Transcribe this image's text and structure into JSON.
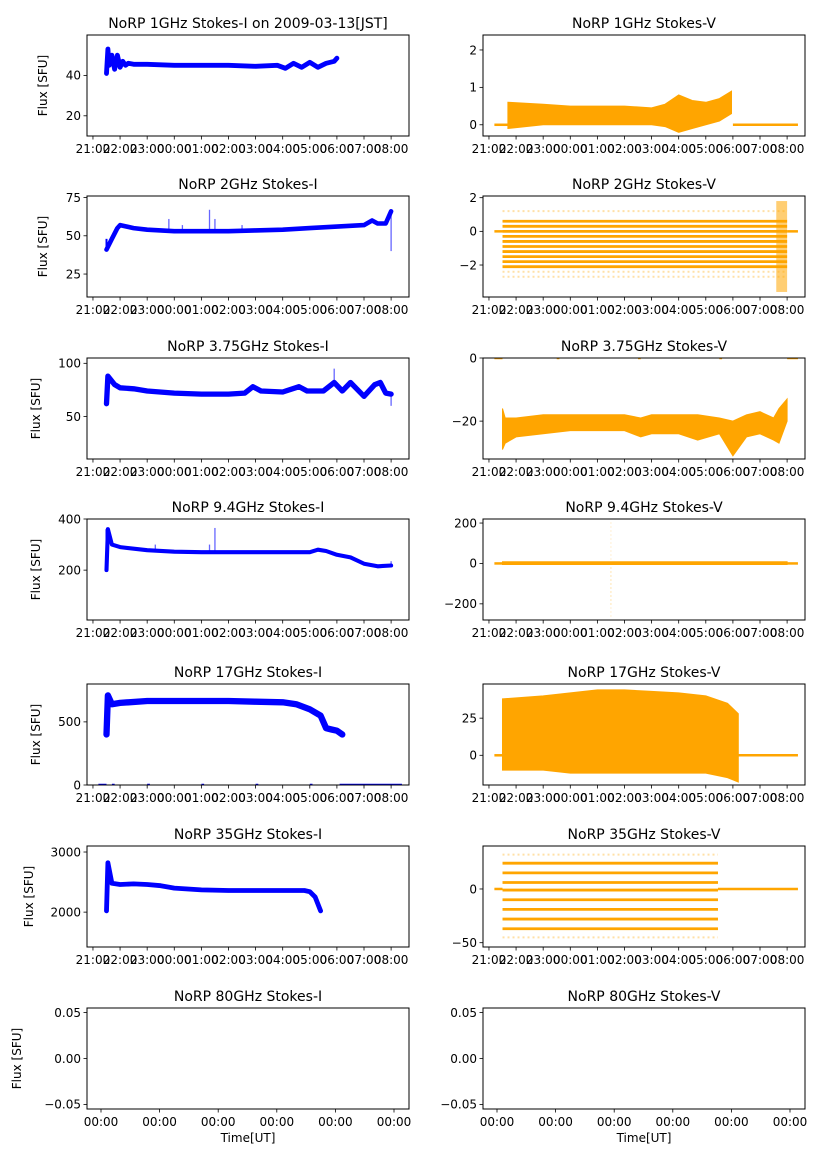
{
  "figure": {
    "xlabel": "Time[UT]",
    "ylabel": "Flux [SFU]",
    "time_ticks": [
      "21:00",
      "22:00",
      "23:00",
      "00:00",
      "01:00",
      "02:00",
      "03:00",
      "04:00",
      "05:00",
      "06:00",
      "07:00",
      "08:00"
    ],
    "empty_time_ticks": [
      "00:00",
      "00:00",
      "00:00",
      "00:00",
      "00:00",
      "00:00"
    ],
    "colors": {
      "stokes_i": "#0000ff",
      "stokes_v": "#ffa500"
    }
  },
  "chart_data": [
    {
      "type": "scatter",
      "title": "NoRP 1GHz Stokes-I on 2009-03-13[JST]",
      "ylabel": "Flux [SFU]",
      "xlabel": "",
      "series": [
        {
          "name": "Stokes-I",
          "color": "#0000ff",
          "kind": "line",
          "x": [
            -2.5,
            -2.45,
            -2.4,
            -2.3,
            -2.2,
            -2.1,
            -2.0,
            -1.9,
            -1.8,
            -1.7,
            -1.5,
            -1.0,
            0,
            1,
            2,
            3,
            3.8,
            4.1,
            4.4,
            4.7,
            5.0,
            5.3,
            5.6,
            5.9,
            6.0
          ],
          "y": [
            41,
            53,
            45,
            50,
            43,
            50,
            44,
            47,
            45,
            46,
            45.5,
            45.5,
            45,
            45,
            45,
            44.5,
            45,
            43.5,
            46,
            44,
            46.5,
            44,
            46,
            47,
            48.5
          ],
          "spread": 1.2
        }
      ],
      "yticks": [
        20,
        40
      ],
      "ylim": [
        10,
        60
      ]
    },
    {
      "type": "scatter",
      "title": "NoRP 1GHz Stokes-V",
      "ylabel": "",
      "xlabel": "",
      "series": [
        {
          "name": "Stokes-V",
          "color": "#ffa500",
          "kind": "band",
          "x": [
            -2.3,
            -1.0,
            0,
            1,
            2,
            3,
            3.5,
            4.0,
            4.5,
            5.0,
            5.5,
            5.95
          ],
          "low": [
            -0.1,
            0.0,
            0.0,
            0.0,
            0.0,
            0.0,
            -0.05,
            -0.2,
            -0.1,
            0.0,
            0.1,
            0.3
          ],
          "high": [
            0.6,
            0.55,
            0.5,
            0.5,
            0.5,
            0.45,
            0.55,
            0.8,
            0.65,
            0.6,
            0.7,
            0.9
          ],
          "flat": [
            [
              -2.8,
              -2.3,
              0
            ],
            [
              6.0,
              8.4,
              0
            ]
          ]
        }
      ],
      "yticks": [
        0,
        1,
        2
      ],
      "ylim": [
        -0.3,
        2.4
      ]
    },
    {
      "type": "scatter",
      "title": "NoRP 2GHz Stokes-I",
      "ylabel": "Flux [SFU]",
      "xlabel": "",
      "series": [
        {
          "name": "Stokes-I",
          "color": "#0000ff",
          "kind": "line",
          "x": [
            -2.5,
            -2.3,
            -2.1,
            -2.0,
            -1.5,
            -1.0,
            0,
            1,
            2,
            3,
            4,
            5,
            6,
            7,
            7.3,
            7.5,
            7.8,
            8.0
          ],
          "y": [
            41,
            48,
            55,
            57,
            55,
            54,
            53,
            53,
            53,
            53.5,
            54,
            55,
            56,
            57,
            60,
            58,
            58,
            66
          ],
          "spread": 1.5,
          "spikes": [
            [
              -0.2,
              61
            ],
            [
              0.3,
              57
            ],
            [
              1.3,
              67
            ],
            [
              1.5,
              61
            ],
            [
              2.5,
              57
            ],
            [
              8.0,
              40
            ]
          ]
        }
      ],
      "yticks": [
        25,
        50,
        75
      ],
      "ylim": [
        10,
        76
      ]
    },
    {
      "type": "scatter",
      "title": "NoRP 2GHz Stokes-V",
      "ylabel": "",
      "xlabel": "",
      "series": [
        {
          "name": "Stokes-V",
          "color": "#ffa500",
          "kind": "levels",
          "x": [
            -2.5,
            8.0
          ],
          "levels": [
            0.6,
            0.3,
            0,
            -0.3,
            -0.6,
            -0.9,
            -1.2,
            -1.5,
            -1.8,
            -2.1
          ],
          "sparse_levels": [
            1.2,
            -2.4,
            -2.7
          ],
          "tail": [
            [
              7.6,
              8.0,
              -3.6,
              1.8
            ]
          ],
          "flat": [
            [
              -2.8,
              -2.5,
              0
            ],
            [
              8.0,
              8.4,
              0
            ]
          ]
        }
      ],
      "yticks": [
        -2,
        0,
        2
      ],
      "ylim": [
        -3.9,
        2.1
      ]
    },
    {
      "type": "scatter",
      "title": "NoRP 3.75GHz Stokes-I",
      "ylabel": "Flux [SFU]",
      "xlabel": "",
      "series": [
        {
          "name": "Stokes-I",
          "color": "#0000ff",
          "kind": "line",
          "x": [
            -2.5,
            -2.45,
            -2.2,
            -2.0,
            -1.5,
            -1.0,
            0,
            1,
            2,
            2.6,
            2.9,
            3.2,
            4,
            4.6,
            4.9,
            5.5,
            5.9,
            6.2,
            6.5,
            7.0,
            7.4,
            7.6,
            7.8,
            8.0
          ],
          "y": [
            62,
            88,
            80,
            77,
            76,
            74,
            72,
            71,
            71,
            72,
            78,
            74,
            73,
            78,
            74,
            74,
            82,
            74,
            82,
            69,
            80,
            82,
            72,
            71
          ],
          "spread": 2.5,
          "spikes": [
            [
              5.9,
              95
            ],
            [
              8.0,
              60
            ]
          ]
        }
      ],
      "yticks": [
        50,
        100
      ],
      "ylim": [
        10,
        105
      ]
    },
    {
      "type": "scatter",
      "title": "NoRP 3.75GHz Stokes-V",
      "ylabel": "",
      "xlabel": "",
      "series": [
        {
          "name": "Stokes-V",
          "color": "#ffa500",
          "kind": "band",
          "x": [
            -2.5,
            -2.4,
            -2.0,
            -1.0,
            0,
            1,
            2,
            2.6,
            3.0,
            4.0,
            4.7,
            5.5,
            6.0,
            6.5,
            7.0,
            7.5,
            7.7,
            8.0
          ],
          "low": [
            -29,
            -27,
            -25,
            -24,
            -23,
            -23,
            -23,
            -25,
            -24,
            -24,
            -26,
            -24,
            -31,
            -25,
            -24,
            -26,
            -27,
            -20
          ],
          "high": [
            -16,
            -19,
            -19,
            -18,
            -18,
            -18,
            -18,
            -19,
            -18,
            -18,
            -18,
            -19,
            -20,
            -18,
            -17,
            -19,
            -16,
            -13
          ],
          "flat": [
            [
              -2.8,
              -2.5,
              0
            ],
            [
              -0.5,
              -0.4,
              0
            ],
            [
              2.5,
              2.6,
              0
            ],
            [
              5.5,
              5.6,
              0
            ],
            [
              8.0,
              8.4,
              0
            ]
          ]
        }
      ],
      "yticks": [
        -20,
        0
      ],
      "ylim": [
        -32,
        0
      ]
    },
    {
      "type": "scatter",
      "title": "NoRP 9.4GHz Stokes-I",
      "ylabel": "Flux [SFU]",
      "xlabel": "",
      "series": [
        {
          "name": "Stokes-I",
          "color": "#0000ff",
          "kind": "line",
          "x": [
            -2.5,
            -2.45,
            -2.3,
            -2.0,
            -1.0,
            0,
            1,
            2,
            3,
            4,
            5.0,
            5.3,
            5.6,
            6.0,
            6.5,
            7.0,
            7.5,
            8.0
          ],
          "y": [
            200,
            360,
            300,
            290,
            278,
            272,
            270,
            270,
            270,
            270,
            270,
            280,
            275,
            260,
            250,
            225,
            215,
            218
          ],
          "spread": 8,
          "spikes": [
            [
              -0.7,
              300
            ],
            [
              1.3,
              300
            ],
            [
              1.5,
              365
            ],
            [
              8.0,
              235
            ]
          ]
        }
      ],
      "yticks": [
        200,
        400
      ],
      "ylim": [
        5,
        400
      ]
    },
    {
      "type": "scatter",
      "title": "NoRP 9.4GHz Stokes-V",
      "ylabel": "",
      "xlabel": "",
      "series": [
        {
          "name": "Stokes-V",
          "color": "#ffa500",
          "kind": "band",
          "x": [
            -2.5,
            8.0
          ],
          "low": [
            -5,
            -5
          ],
          "high": [
            8,
            8
          ],
          "spikes": [
            [
              1.5,
              210
            ],
            [
              1.5,
              -210
            ],
            [
              1.5,
              -280
            ]
          ],
          "flat": [
            [
              -2.8,
              -2.5,
              0
            ],
            [
              8.0,
              8.4,
              0
            ]
          ]
        }
      ],
      "yticks": [
        -200,
        0,
        200
      ],
      "ylim": [
        -280,
        220
      ]
    },
    {
      "type": "scatter",
      "title": "NoRP 17GHz Stokes-I",
      "ylabel": "Flux [SFU]",
      "xlabel": "",
      "series": [
        {
          "name": "Stokes-I",
          "color": "#0000ff",
          "kind": "line",
          "x": [
            -2.5,
            -2.45,
            -2.3,
            -2.0,
            -1.0,
            0,
            1,
            2,
            3,
            4,
            4.5,
            5.0,
            5.4,
            5.6,
            5.8,
            6.0,
            6.2
          ],
          "y": [
            400,
            710,
            640,
            650,
            665,
            665,
            665,
            665,
            660,
            655,
            640,
            600,
            550,
            450,
            440,
            430,
            400
          ],
          "spread": 25,
          "baseline": [
            [
              -2.8,
              -2.5,
              0
            ],
            [
              -2.3,
              -2.2,
              0
            ],
            [
              -1.0,
              -0.9,
              0
            ],
            [
              1.0,
              1.1,
              0
            ],
            [
              3.0,
              3.1,
              0
            ],
            [
              5.0,
              5.1,
              0
            ],
            [
              6.1,
              8.4,
              0
            ]
          ]
        }
      ],
      "yticks": [
        0,
        500
      ],
      "ylim": [
        0,
        800
      ]
    },
    {
      "type": "scatter",
      "title": "NoRP 17GHz Stokes-V",
      "ylabel": "",
      "xlabel": "",
      "series": [
        {
          "name": "Stokes-V",
          "color": "#ffa500",
          "kind": "band",
          "x": [
            -2.5,
            -1.0,
            0,
            1,
            2,
            3,
            4,
            5,
            5.8,
            6.2
          ],
          "low": [
            -10,
            -10,
            -12,
            -12,
            -12,
            -12,
            -12,
            -12,
            -15,
            -18
          ],
          "high": [
            38,
            40,
            42,
            44,
            44,
            43,
            42,
            40,
            35,
            28
          ],
          "flat": [
            [
              -2.8,
              -2.5,
              0
            ],
            [
              6.2,
              8.4,
              0
            ]
          ]
        }
      ],
      "yticks": [
        0,
        25
      ],
      "ylim": [
        -20,
        48
      ]
    },
    {
      "type": "scatter",
      "title": "NoRP 35GHz Stokes-I",
      "ylabel": "Flux [SFU]",
      "xlabel": "",
      "series": [
        {
          "name": "Stokes-I",
          "color": "#0000ff",
          "kind": "line",
          "x": [
            -2.5,
            -2.45,
            -2.3,
            -2.0,
            -1.5,
            -1.0,
            -0.5,
            0,
            1,
            2,
            3,
            4,
            4.8,
            5.0,
            5.2,
            5.4
          ],
          "y": [
            2020,
            2820,
            2480,
            2460,
            2470,
            2460,
            2440,
            2400,
            2370,
            2360,
            2360,
            2360,
            2360,
            2340,
            2250,
            2020
          ],
          "spread": 40
        }
      ],
      "yticks": [
        2000,
        3000
      ],
      "ylim": [
        1420,
        3100
      ]
    },
    {
      "type": "scatter",
      "title": "NoRP 35GHz Stokes-V",
      "ylabel": "",
      "xlabel": "",
      "series": [
        {
          "name": "Stokes-V",
          "color": "#ffa500",
          "kind": "levels",
          "x": [
            -2.5,
            5.45
          ],
          "levels": [
            24,
            15,
            6,
            -1,
            -10,
            -19,
            -28,
            -37
          ],
          "sparse_levels": [
            32,
            -45
          ],
          "flat": [
            [
              -2.8,
              -2.5,
              0
            ],
            [
              5.45,
              8.4,
              0
            ]
          ]
        }
      ],
      "yticks": [
        -50,
        0
      ],
      "ylim": [
        -54,
        40
      ]
    },
    {
      "type": "scatter",
      "title": "NoRP 80GHz Stokes-I",
      "ylabel": "Flux [SFU]",
      "xlabel": "Time[UT]",
      "series": [],
      "yticks": [
        -0.05,
        0.0,
        0.05
      ],
      "yticklabels": [
        "−0.05",
        "0.00",
        "0.05"
      ],
      "ylim": [
        -0.055,
        0.055
      ],
      "empty": true
    },
    {
      "type": "scatter",
      "title": "NoRP 80GHz Stokes-V",
      "ylabel": "",
      "xlabel": "Time[UT]",
      "series": [],
      "yticks": [
        -0.05,
        0.0,
        0.05
      ],
      "yticklabels": [
        "−0.05",
        "0.00",
        "0.05"
      ],
      "ylim": [
        -0.055,
        0.055
      ],
      "empty": true
    }
  ]
}
